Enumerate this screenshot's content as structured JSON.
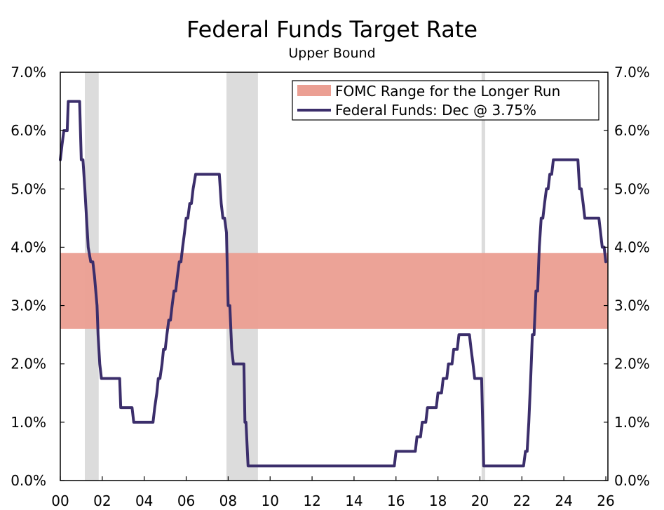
{
  "chart_data": {
    "type": "line",
    "title": "Federal Funds Target Rate",
    "subtitle": "Upper Bound",
    "xlabel": "",
    "ylabel": "",
    "x_tick_labels": [
      "00",
      "02",
      "04",
      "06",
      "08",
      "10",
      "12",
      "14",
      "16",
      "18",
      "20",
      "22",
      "24",
      "26"
    ],
    "x_tick_years": [
      2000,
      2002,
      2004,
      2006,
      2008,
      2010,
      2012,
      2014,
      2016,
      2018,
      2020,
      2022,
      2024,
      2026
    ],
    "xlim": [
      2000,
      2026.1
    ],
    "y_tick_values": [
      0,
      1,
      2,
      3,
      4,
      5,
      6,
      7
    ],
    "y_tick_labels": [
      "0.0%",
      "1.0%",
      "2.0%",
      "3.0%",
      "4.0%",
      "5.0%",
      "6.0%",
      "7.0%"
    ],
    "ylim": [
      0,
      7
    ],
    "legend": {
      "placement": "top-right",
      "entries": [
        "FOMC Range for the Longer Run",
        "Federal Funds: Dec @ 3.75%"
      ]
    },
    "longer_run_band": {
      "name": "FOMC Range for the Longer Run",
      "low": 2.6,
      "high": 3.9,
      "color": "#eb9f93"
    },
    "recessions": [
      {
        "start": 2001.17,
        "end": 2001.83
      },
      {
        "start": 2007.92,
        "end": 2009.42
      },
      {
        "start": 2020.08,
        "end": 2020.25
      }
    ],
    "recession_color": "#dcdcdc",
    "series": [
      {
        "name": "Federal Funds: Dec @ 3.75%",
        "color": "#3b2e6b",
        "points": [
          [
            2000.0,
            5.5
          ],
          [
            2000.08,
            5.75
          ],
          [
            2000.17,
            6.0
          ],
          [
            2000.33,
            6.0
          ],
          [
            2000.38,
            6.5
          ],
          [
            2000.92,
            6.5
          ],
          [
            2001.0,
            5.5
          ],
          [
            2001.08,
            5.5
          ],
          [
            2001.17,
            5.0
          ],
          [
            2001.25,
            4.5
          ],
          [
            2001.33,
            4.0
          ],
          [
            2001.45,
            3.75
          ],
          [
            2001.55,
            3.75
          ],
          [
            2001.63,
            3.5
          ],
          [
            2001.75,
            3.0
          ],
          [
            2001.8,
            2.5
          ],
          [
            2001.88,
            2.0
          ],
          [
            2001.96,
            1.75
          ],
          [
            2002.83,
            1.75
          ],
          [
            2002.88,
            1.25
          ],
          [
            2003.42,
            1.25
          ],
          [
            2003.5,
            1.0
          ],
          [
            2004.42,
            1.0
          ],
          [
            2004.5,
            1.25
          ],
          [
            2004.6,
            1.5
          ],
          [
            2004.67,
            1.75
          ],
          [
            2004.75,
            1.75
          ],
          [
            2004.85,
            2.0
          ],
          [
            2004.92,
            2.25
          ],
          [
            2005.0,
            2.25
          ],
          [
            2005.08,
            2.5
          ],
          [
            2005.17,
            2.75
          ],
          [
            2005.25,
            2.75
          ],
          [
            2005.33,
            3.0
          ],
          [
            2005.42,
            3.25
          ],
          [
            2005.5,
            3.25
          ],
          [
            2005.58,
            3.5
          ],
          [
            2005.67,
            3.75
          ],
          [
            2005.75,
            3.75
          ],
          [
            2005.83,
            4.0
          ],
          [
            2005.92,
            4.25
          ],
          [
            2006.0,
            4.5
          ],
          [
            2006.08,
            4.5
          ],
          [
            2006.17,
            4.75
          ],
          [
            2006.25,
            4.75
          ],
          [
            2006.33,
            5.0
          ],
          [
            2006.45,
            5.25
          ],
          [
            2007.58,
            5.25
          ],
          [
            2007.67,
            4.75
          ],
          [
            2007.75,
            4.5
          ],
          [
            2007.83,
            4.5
          ],
          [
            2007.92,
            4.25
          ],
          [
            2008.0,
            3.0
          ],
          [
            2008.08,
            3.0
          ],
          [
            2008.17,
            2.25
          ],
          [
            2008.25,
            2.0
          ],
          [
            2008.75,
            2.0
          ],
          [
            2008.8,
            1.0
          ],
          [
            2008.85,
            1.0
          ],
          [
            2008.95,
            0.25
          ],
          [
            2015.92,
            0.25
          ],
          [
            2016.0,
            0.5
          ],
          [
            2016.92,
            0.5
          ],
          [
            2017.0,
            0.75
          ],
          [
            2017.17,
            0.75
          ],
          [
            2017.25,
            1.0
          ],
          [
            2017.42,
            1.0
          ],
          [
            2017.5,
            1.25
          ],
          [
            2017.92,
            1.25
          ],
          [
            2018.0,
            1.5
          ],
          [
            2018.17,
            1.5
          ],
          [
            2018.25,
            1.75
          ],
          [
            2018.42,
            1.75
          ],
          [
            2018.5,
            2.0
          ],
          [
            2018.67,
            2.0
          ],
          [
            2018.75,
            2.25
          ],
          [
            2018.92,
            2.25
          ],
          [
            2019.0,
            2.5
          ],
          [
            2019.5,
            2.5
          ],
          [
            2019.58,
            2.25
          ],
          [
            2019.67,
            2.0
          ],
          [
            2019.75,
            1.75
          ],
          [
            2020.08,
            1.75
          ],
          [
            2020.13,
            1.0
          ],
          [
            2020.18,
            0.25
          ],
          [
            2022.08,
            0.25
          ],
          [
            2022.17,
            0.5
          ],
          [
            2022.25,
            0.5
          ],
          [
            2022.33,
            1.0
          ],
          [
            2022.42,
            1.75
          ],
          [
            2022.5,
            2.5
          ],
          [
            2022.58,
            2.5
          ],
          [
            2022.67,
            3.25
          ],
          [
            2022.75,
            3.25
          ],
          [
            2022.83,
            4.0
          ],
          [
            2022.92,
            4.5
          ],
          [
            2023.0,
            4.5
          ],
          [
            2023.08,
            4.75
          ],
          [
            2023.17,
            5.0
          ],
          [
            2023.25,
            5.0
          ],
          [
            2023.33,
            5.25
          ],
          [
            2023.42,
            5.25
          ],
          [
            2023.5,
            5.5
          ],
          [
            2024.67,
            5.5
          ],
          [
            2024.75,
            5.0
          ],
          [
            2024.83,
            5.0
          ],
          [
            2024.92,
            4.75
          ],
          [
            2025.0,
            4.5
          ],
          [
            2025.67,
            4.5
          ],
          [
            2025.75,
            4.25
          ],
          [
            2025.83,
            4.0
          ],
          [
            2025.92,
            4.0
          ],
          [
            2026.0,
            3.75
          ]
        ]
      }
    ]
  }
}
